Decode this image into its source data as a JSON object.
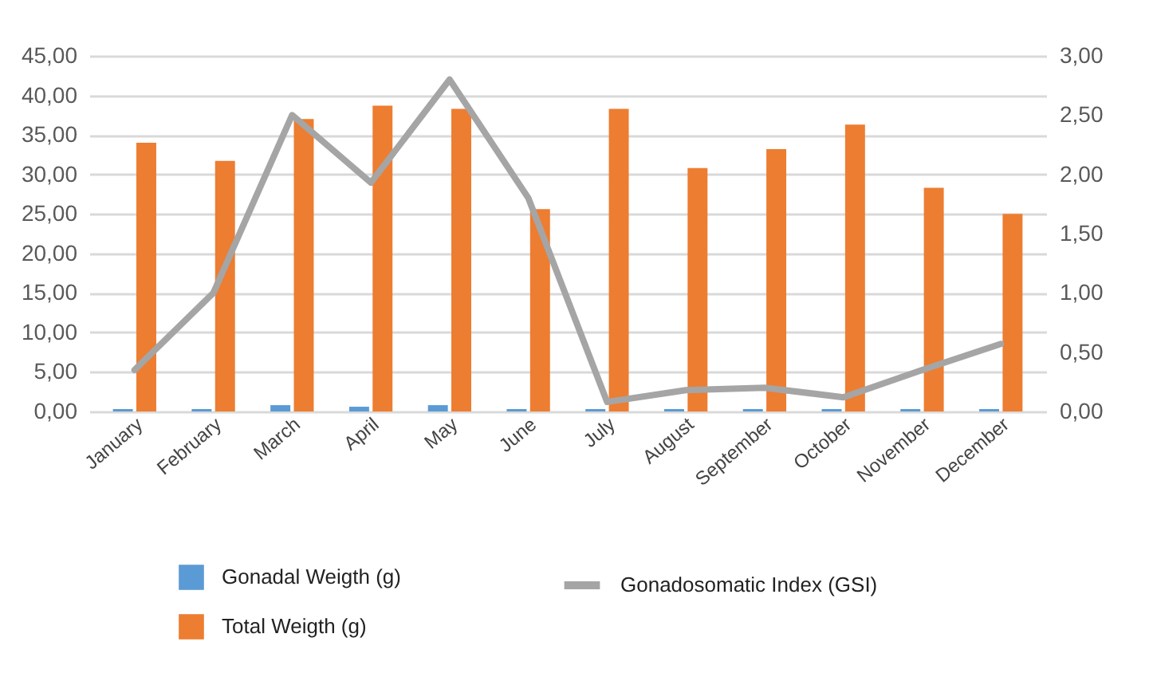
{
  "chart_data": {
    "type": "bar",
    "categories": [
      "January",
      "February",
      "March",
      "April",
      "May",
      "June",
      "July",
      "August",
      "September",
      "October",
      "November",
      "December"
    ],
    "series": [
      {
        "name": "Gonadal Weigth (g)",
        "color": "#5b9bd5",
        "values": [
          0.3,
          0.3,
          0.8,
          0.6,
          0.8,
          0.3,
          0.3,
          0.3,
          0.3,
          0.3,
          0.3,
          0.3
        ]
      },
      {
        "name": "Total Weigth (g)",
        "color": "#ed7d31",
        "values": [
          34.0,
          31.7,
          37.0,
          38.7,
          38.3,
          25.6,
          38.3,
          30.8,
          33.2,
          36.3,
          28.3,
          25.0
        ]
      },
      {
        "name": "Gonadosomatic Index (GSI)",
        "color": "#a5a5a5",
        "type": "line",
        "axis": "y2",
        "values": [
          0.35,
          1.0,
          2.5,
          1.93,
          2.8,
          1.8,
          0.08,
          0.18,
          0.2,
          0.12,
          0.35,
          0.57
        ]
      }
    ],
    "ylim": [
      0,
      45
    ],
    "yticks": [
      {
        "value": 0,
        "label": "0,00"
      },
      {
        "value": 5,
        "label": "5,00"
      },
      {
        "value": 10,
        "label": "10,00"
      },
      {
        "value": 15,
        "label": "15,00"
      },
      {
        "value": 20,
        "label": "20,00"
      },
      {
        "value": 25,
        "label": "25,00"
      },
      {
        "value": 30,
        "label": "30,00"
      },
      {
        "value": 35,
        "label": "35,00"
      },
      {
        "value": 40,
        "label": "40,00"
      },
      {
        "value": 45,
        "label": "45,00"
      }
    ],
    "y2lim": [
      0,
      3
    ],
    "y2ticks": [
      {
        "value": 0,
        "label": "0,00"
      },
      {
        "value": 0.5,
        "label": "0,50"
      },
      {
        "value": 1,
        "label": "1,00"
      },
      {
        "value": 1.5,
        "label": "1,50"
      },
      {
        "value": 2,
        "label": "2,00"
      },
      {
        "value": 2.5,
        "label": "2,50"
      },
      {
        "value": 3,
        "label": "3,00"
      }
    ],
    "grid": "y",
    "legend": "bottom",
    "line_style": "solid",
    "marker": "none"
  }
}
